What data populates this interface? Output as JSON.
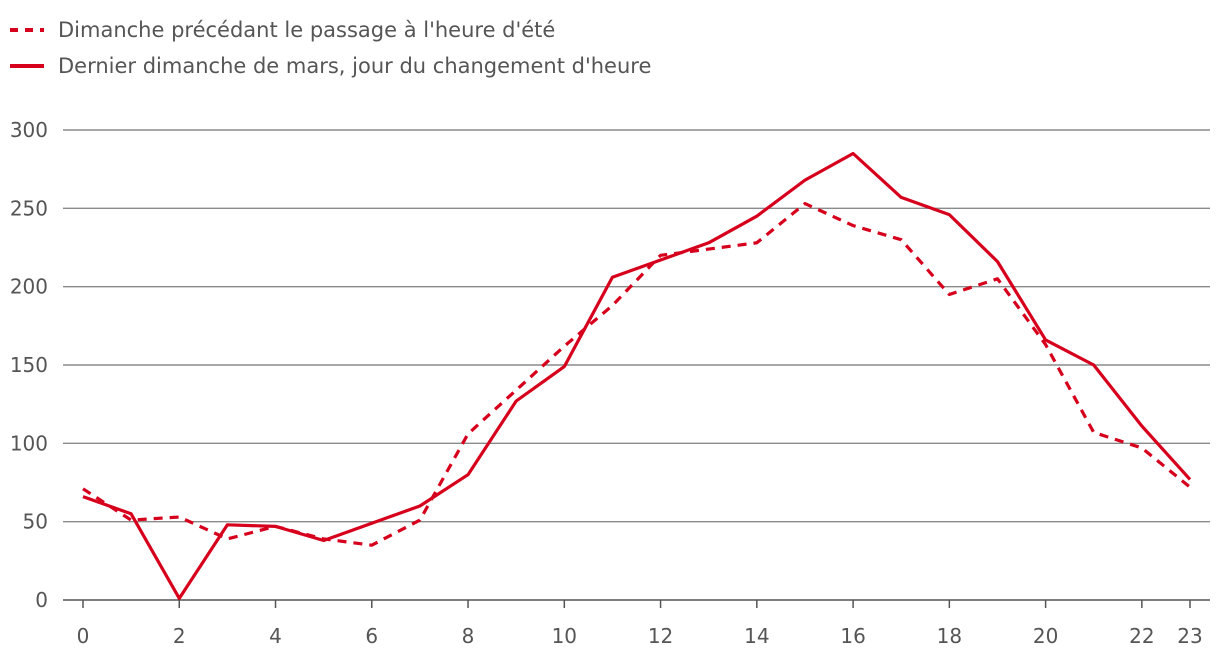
{
  "chart_data": {
    "type": "line",
    "x": [
      0,
      1,
      2,
      3,
      4,
      5,
      6,
      7,
      8,
      9,
      10,
      11,
      12,
      13,
      14,
      15,
      16,
      17,
      18,
      19,
      20,
      21,
      22,
      23
    ],
    "xticks": [
      0,
      2,
      4,
      6,
      8,
      10,
      12,
      14,
      16,
      18,
      20,
      22,
      23
    ],
    "yticks": [
      0,
      50,
      100,
      150,
      200,
      250,
      300
    ],
    "ylim": [
      0,
      300
    ],
    "xlim": [
      0,
      23
    ],
    "grid": true,
    "legend_position": "top-left",
    "series": [
      {
        "name": "Dimanche précédant le passage à l'heure d'été",
        "style": "dashed",
        "color": "#d6001c",
        "values": [
          71,
          51,
          53,
          39,
          47,
          39,
          35,
          51,
          106,
          134,
          162,
          188,
          220,
          224,
          228,
          253,
          239,
          230,
          195,
          205,
          163,
          107,
          97,
          72
        ]
      },
      {
        "name": "Dernier dimanche de mars, jour du changement d'heure",
        "style": "solid",
        "color": "#d6001c",
        "values": [
          66,
          55,
          1,
          48,
          47,
          38,
          49,
          60,
          80,
          127,
          149,
          206,
          217,
          228,
          245,
          268,
          285,
          257,
          246,
          216,
          166,
          150,
          111,
          77
        ]
      }
    ]
  }
}
